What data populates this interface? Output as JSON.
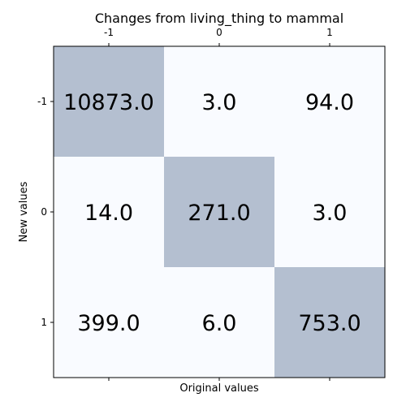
{
  "chart_data": {
    "type": "heatmap",
    "title": "Changes from living_thing to mammal",
    "xlabel": "Original values",
    "ylabel": "New values",
    "x_categories": [
      "-1",
      "0",
      "1"
    ],
    "y_categories": [
      "-1",
      "0",
      "1"
    ],
    "values": [
      [
        10873.0,
        3.0,
        94.0
      ],
      [
        14.0,
        271.0,
        3.0
      ],
      [
        399.0,
        6.0,
        753.0
      ]
    ],
    "cell_labels": [
      [
        "10873.0",
        "3.0",
        "94.0"
      ],
      [
        "14.0",
        "271.0",
        "3.0"
      ],
      [
        "399.0",
        "6.0",
        "753.0"
      ]
    ],
    "x_tick_position": "top",
    "colors": {
      "diagonal": "#b4bfd0",
      "off_diagonal": "#f9fbff",
      "frame": "#000000"
    }
  }
}
